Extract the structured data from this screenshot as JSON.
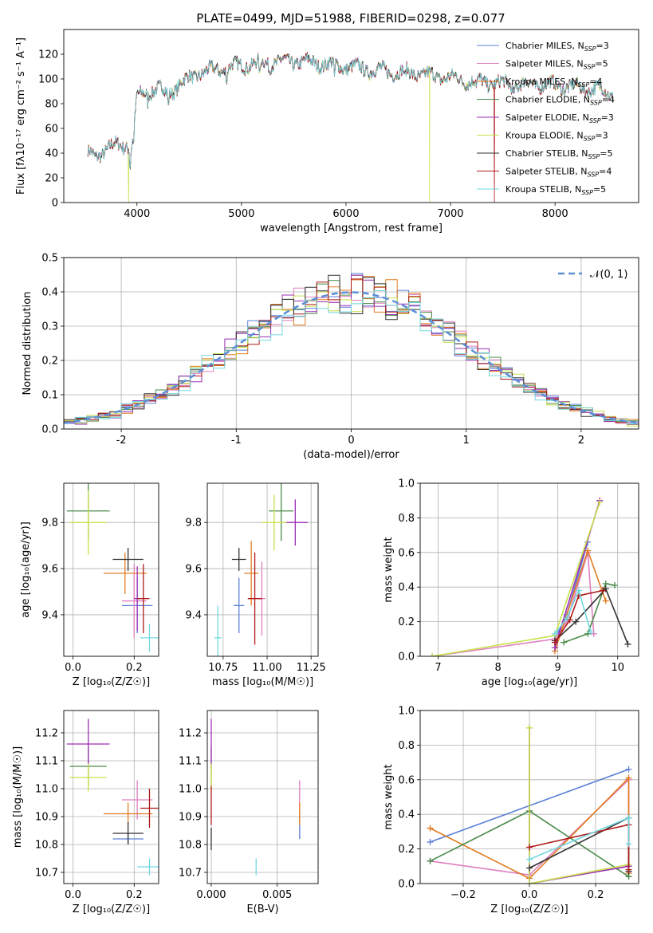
{
  "title": "PLATE=0499, MJD=51988, FIBERID=0298, z=0.077",
  "colors": [
    "#5b7fd8",
    "#e07fbf",
    "#e07b20",
    "#4a8a4a",
    "#9b2fb5",
    "#c8e04a",
    "#333333",
    "#b01818",
    "#72d8e0"
  ],
  "models": [
    {
      "name": "Chabrier MILES",
      "nssp": "3"
    },
    {
      "name": "Salpeter MILES",
      "nssp": "5"
    },
    {
      "name": "Kroupa MILES",
      "nssp": "4"
    },
    {
      "name": "Chabrier ELODIE",
      "nssp": "4"
    },
    {
      "name": "Salpeter ELODIE",
      "nssp": "3"
    },
    {
      "name": "Kroupa ELODIE",
      "nssp": "3"
    },
    {
      "name": "Chabrier STELIB",
      "nssp": "5"
    },
    {
      "name": "Salpeter STELIB",
      "nssp": "4"
    },
    {
      "name": "Kroupa STELIB",
      "nssp": "5"
    }
  ],
  "chart_data": [
    {
      "id": "spectrum",
      "type": "line",
      "xlabel": "wavelength [Angstrom, rest frame]",
      "ylabel": "Flux [f_λ 10^-17 erg cm^-2 s^-1 A^-1]",
      "xlim": [
        3300,
        8800
      ],
      "ylim": [
        0,
        140
      ],
      "xticks": [
        4000,
        5000,
        6000,
        7000,
        8000
      ],
      "yticks": [
        0,
        20,
        40,
        60,
        80,
        100,
        120
      ],
      "grid": false,
      "legend": "top-right",
      "continuum": {
        "x": [
          3530,
          3600,
          3700,
          3800,
          3900,
          3950,
          4000,
          4100,
          4200,
          4300,
          4400,
          4500,
          4600,
          4800,
          5000,
          5200,
          5400,
          5600,
          5800,
          6000,
          6200,
          6400,
          6600,
          6800,
          7000,
          7200,
          7400,
          7600,
          7800,
          8000,
          8200,
          8400,
          8560
        ],
        "y": [
          40,
          37,
          43,
          46,
          47,
          45,
          85,
          90,
          92,
          88,
          95,
          100,
          105,
          108,
          111,
          113,
          114,
          114,
          112,
          110,
          108,
          106,
          105,
          103,
          101,
          98,
          97,
          95,
          96,
          95,
          93,
          92,
          88
        ]
      },
      "dropouts": [
        {
          "series": 5,
          "x": 3920
        },
        {
          "series": 5,
          "x": 6800
        },
        {
          "series": 7,
          "x": 7420
        }
      ]
    },
    {
      "id": "residuals",
      "type": "histogram",
      "xlabel": "(data-model)/error",
      "ylabel": "Normed distribution",
      "xlim": [
        -2.5,
        2.5
      ],
      "ylim": [
        0,
        0.5
      ],
      "xticks": [
        -2,
        -1,
        0,
        1,
        2
      ],
      "yticks": [
        0.0,
        0.1,
        0.2,
        0.3,
        0.4,
        0.5
      ],
      "grid": true,
      "legend": "top-right",
      "reference": {
        "label": "𝒩(0, 1)",
        "mu": 0,
        "sigma": 1
      }
    },
    {
      "id": "age_vs_Z",
      "type": "errorbar",
      "xlabel": "Z [log₁₀(Z/Z☉)]",
      "ylabel": "age  [log₁₀(age/yr)]",
      "xlim": [
        -0.03,
        0.28
      ],
      "ylim": [
        9.22,
        9.97
      ],
      "xticks": [
        0.0,
        0.2
      ],
      "yticks": [
        9.4,
        9.6,
        9.8
      ],
      "points": [
        {
          "series": 0,
          "x": 0.21,
          "xerr": 0.05,
          "y": 9.44,
          "yerr": 0.12
        },
        {
          "series": 1,
          "x": 0.2,
          "xerr": 0.04,
          "y": 9.46,
          "yerr": 0.16
        },
        {
          "series": 2,
          "x": 0.17,
          "xerr": 0.07,
          "y": 9.58,
          "yerr": 0.09
        },
        {
          "series": 3,
          "x": 0.05,
          "xerr": 0.07,
          "y": 9.85,
          "yerr": 0.12
        },
        {
          "series": 4,
          "x": 0.21,
          "xerr": 0.01,
          "y": 9.47,
          "yerr": 0.14
        },
        {
          "series": 5,
          "x": 0.05,
          "xerr": 0.06,
          "y": 9.8,
          "yerr": 0.14
        },
        {
          "series": 6,
          "x": 0.18,
          "xerr": 0.05,
          "y": 9.64,
          "yerr": 0.05
        },
        {
          "series": 7,
          "x": 0.23,
          "xerr": 0.02,
          "y": 9.47,
          "yerr": 0.15
        },
        {
          "series": 8,
          "x": 0.25,
          "xerr": 0.03,
          "y": 9.3,
          "yerr": 0.06
        }
      ]
    },
    {
      "id": "age_vs_mass",
      "type": "errorbar",
      "xlabel": "mass [log₁₀(M/M☉)]",
      "ylabel": "",
      "xlim": [
        10.66,
        11.29
      ],
      "ylim": [
        9.22,
        9.97
      ],
      "xticks": [
        10.75,
        11.0,
        11.25
      ],
      "yticks": [
        9.4,
        9.6,
        9.8
      ],
      "points": [
        {
          "series": 0,
          "x": 10.84,
          "xerr": 0.03,
          "y": 9.44,
          "yerr": 0.12
        },
        {
          "series": 1,
          "x": 10.97,
          "xerr": 0.02,
          "y": 9.47,
          "yerr": 0.16
        },
        {
          "series": 2,
          "x": 10.91,
          "xerr": 0.04,
          "y": 9.58,
          "yerr": 0.14
        },
        {
          "series": 3,
          "x": 11.08,
          "xerr": 0.07,
          "y": 9.85,
          "yerr": 0.13
        },
        {
          "series": 4,
          "x": 11.16,
          "xerr": 0.07,
          "y": 9.8,
          "yerr": 0.1
        },
        {
          "series": 5,
          "x": 11.04,
          "xerr": 0.07,
          "y": 9.8,
          "yerr": 0.12
        },
        {
          "series": 6,
          "x": 10.84,
          "xerr": 0.04,
          "y": 9.64,
          "yerr": 0.05
        },
        {
          "series": 7,
          "x": 10.93,
          "xerr": 0.04,
          "y": 9.47,
          "yerr": 0.2
        },
        {
          "series": 8,
          "x": 10.72,
          "xerr": 0.02,
          "y": 9.3,
          "yerr": 0.14
        }
      ]
    },
    {
      "id": "weight_vs_age",
      "type": "line",
      "xlabel": "age  [log₁₀(age/yr)]",
      "ylabel": "mass weight",
      "xlim": [
        6.7,
        10.35
      ],
      "ylim": [
        0,
        1
      ],
      "xticks": [
        7,
        8,
        9,
        10
      ],
      "yticks": [
        0.0,
        0.2,
        0.4,
        0.6,
        0.8,
        1.0
      ],
      "series": [
        {
          "series": 0,
          "x": [
            8.95,
            9.15,
            9.5
          ],
          "y": [
            0.1,
            0.24,
            0.66
          ]
        },
        {
          "series": 1,
          "x": [
            6.9,
            8.95,
            9.15,
            9.5,
            9.6
          ],
          "y": [
            0.0,
            0.1,
            0.2,
            0.6,
            0.13
          ]
        },
        {
          "series": 2,
          "x": [
            8.95,
            9.5,
            9.8
          ],
          "y": [
            0.03,
            0.61,
            0.32
          ]
        },
        {
          "series": 3,
          "x": [
            9.1,
            9.5,
            9.8,
            9.95
          ],
          "y": [
            0.08,
            0.13,
            0.42,
            0.41
          ]
        },
        {
          "series": 4,
          "x": [
            8.95,
            9.7
          ],
          "y": [
            0.05,
            0.9
          ]
        },
        {
          "series": 5,
          "x": [
            6.9,
            8.95,
            9.7
          ],
          "y": [
            0.0,
            0.12,
            0.89
          ]
        },
        {
          "series": 6,
          "x": [
            8.95,
            9.3,
            9.8,
            10.17
          ],
          "y": [
            0.09,
            0.2,
            0.39,
            0.07
          ]
        },
        {
          "series": 7,
          "x": [
            8.95,
            9.2,
            9.35,
            9.75
          ],
          "y": [
            0.08,
            0.21,
            0.35,
            0.38
          ]
        },
        {
          "series": 8,
          "x": [
            8.95,
            9.15,
            9.35,
            9.55
          ],
          "y": [
            0.13,
            0.22,
            0.38,
            0.14
          ]
        }
      ]
    },
    {
      "id": "mass_vs_Z",
      "type": "errorbar",
      "xlabel": "Z [log₁₀(Z/Z☉)]",
      "ylabel": "mass [log₁₀(M/M☉)]",
      "xlim": [
        -0.03,
        0.28
      ],
      "ylim": [
        10.66,
        11.28
      ],
      "xticks": [
        0.0,
        0.2
      ],
      "yticks": [
        10.7,
        10.8,
        10.9,
        11.0,
        11.1,
        11.2
      ],
      "points": [
        {
          "series": 0,
          "x": 0.18,
          "xerr": 0.05,
          "y": 10.82,
          "yerr": 0.02
        },
        {
          "series": 1,
          "x": 0.21,
          "xerr": 0.05,
          "y": 10.96,
          "yerr": 0.07
        },
        {
          "series": 2,
          "x": 0.18,
          "xerr": 0.08,
          "y": 10.91,
          "yerr": 0.04
        },
        {
          "series": 3,
          "x": 0.05,
          "xerr": 0.06,
          "y": 11.08,
          "yerr": 0.07
        },
        {
          "series": 4,
          "x": 0.05,
          "xerr": 0.07,
          "y": 11.16,
          "yerr": 0.09
        },
        {
          "series": 5,
          "x": 0.05,
          "xerr": 0.06,
          "y": 11.04,
          "yerr": 0.05
        },
        {
          "series": 6,
          "x": 0.18,
          "xerr": 0.05,
          "y": 10.84,
          "yerr": 0.04
        },
        {
          "series": 7,
          "x": 0.25,
          "xerr": 0.03,
          "y": 10.93,
          "yerr": 0.07
        },
        {
          "series": 8,
          "x": 0.25,
          "xerr": 0.04,
          "y": 10.72,
          "yerr": 0.03
        }
      ]
    },
    {
      "id": "mass_vs_ebv",
      "type": "errorbar",
      "xlabel": "E(B-V)",
      "ylabel": "",
      "xlim": [
        -0.0003,
        0.0081
      ],
      "ylim": [
        10.66,
        11.28
      ],
      "xticks": [
        0.0,
        0.005
      ],
      "yticks": [
        10.7,
        10.8,
        10.9,
        11.0,
        11.1,
        11.2
      ],
      "xtick_labels": [
        "0.000",
        "0.005"
      ],
      "points": [
        {
          "series": 0,
          "x": 0.0067,
          "xerr": 0,
          "y": 10.86,
          "yerr": 0.04
        },
        {
          "series": 1,
          "x": 0.0067,
          "xerr": 0,
          "y": 10.96,
          "yerr": 0.07
        },
        {
          "series": 2,
          "x": 0.0067,
          "xerr": 0,
          "y": 10.91,
          "yerr": 0.04
        },
        {
          "series": 3,
          "x": 0.0,
          "xerr": 0,
          "y": 11.08,
          "yerr": 0.07
        },
        {
          "series": 4,
          "x": 0.0,
          "xerr": 0,
          "y": 11.16,
          "yerr": 0.09
        },
        {
          "series": 5,
          "x": 0.0,
          "xerr": 0,
          "y": 11.04,
          "yerr": 0.05
        },
        {
          "series": 6,
          "x": 0.0,
          "xerr": 0,
          "y": 10.82,
          "yerr": 0.04
        },
        {
          "series": 7,
          "x": 0.0,
          "xerr": 0,
          "y": 10.94,
          "yerr": 0.07
        },
        {
          "series": 8,
          "x": 0.0034,
          "xerr": 0,
          "y": 10.72,
          "yerr": 0.03
        }
      ]
    },
    {
      "id": "weight_vs_Z",
      "type": "line",
      "xlabel": "Z [log₁₀(Z/Z☉)]",
      "ylabel": "mass weight",
      "xlim": [
        -0.33,
        0.33
      ],
      "ylim": [
        0,
        1
      ],
      "xticks": [
        -0.2,
        0.0,
        0.2
      ],
      "yticks": [
        0.0,
        0.2,
        0.4,
        0.6,
        0.8,
        1.0
      ],
      "series": [
        {
          "series": 0,
          "x": [
            -0.3,
            0.3
          ],
          "y": [
            0.24,
            0.66
          ]
        },
        {
          "series": 1,
          "x": [
            -0.3,
            0.0,
            0.3,
            0.3
          ],
          "y": [
            0.13,
            0.05,
            0.6,
            0.1
          ]
        },
        {
          "series": 2,
          "x": [
            -0.3,
            0.0,
            0.3,
            0.3
          ],
          "y": [
            0.32,
            0.03,
            0.61,
            0.06
          ]
        },
        {
          "series": 3,
          "x": [
            -0.3,
            0.0,
            0.3,
            0.3
          ],
          "y": [
            0.13,
            0.42,
            0.04,
            0.1
          ]
        },
        {
          "series": 4,
          "x": [
            0.0,
            0.0,
            0.3
          ],
          "y": [
            0.9,
            0.0,
            0.1
          ]
        },
        {
          "series": 5,
          "x": [
            0.0,
            0.0,
            0.3
          ],
          "y": [
            0.9,
            0.0,
            0.11
          ]
        },
        {
          "series": 6,
          "x": [
            0.0,
            0.3,
            0.3
          ],
          "y": [
            0.09,
            0.38,
            0.07
          ]
        },
        {
          "series": 7,
          "x": [
            0.0,
            0.3,
            0.3
          ],
          "y": [
            0.21,
            0.34,
            0.08
          ]
        },
        {
          "series": 8,
          "x": [
            0.0,
            0.3,
            0.3
          ],
          "y": [
            0.14,
            0.38,
            0.23
          ]
        }
      ]
    }
  ]
}
